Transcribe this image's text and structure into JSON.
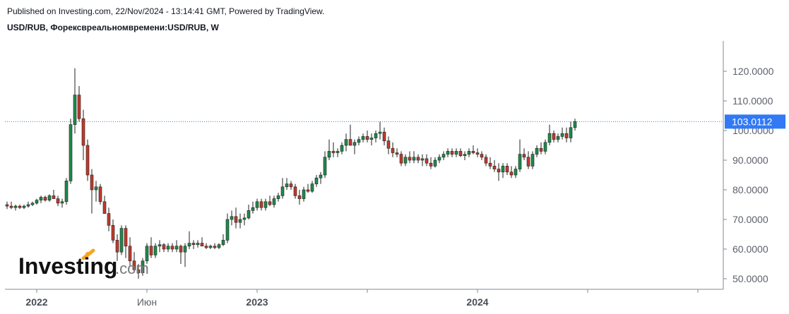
{
  "header": {
    "published": "Published on Investing.com, 22/Nov/2024 - 13:14:41 GMT, Powered by TradingView.",
    "symbol": "USD/RUB, Форексвреальномвремени:USD/RUB, W"
  },
  "logo": {
    "name": "Investing",
    "suffix": ".com"
  },
  "colors": {
    "up": "#1e8a4c",
    "down": "#c0392b",
    "price_tag": "#3179f5",
    "axis": "#868993"
  },
  "chart_data": {
    "type": "candlestick",
    "interval": "W",
    "ylim": [
      45,
      125
    ],
    "y_ticks": [
      {
        "value": 50,
        "label": "50.0000"
      },
      {
        "value": 60,
        "label": "60.0000"
      },
      {
        "value": 70,
        "label": "70.0000"
      },
      {
        "value": 80,
        "label": "80.0000"
      },
      {
        "value": 90,
        "label": "90.0000"
      },
      {
        "value": 100,
        "label": "100.0000"
      },
      {
        "value": 110,
        "label": "110.0000"
      },
      {
        "value": 120,
        "label": "120.0000"
      }
    ],
    "x_ticks": [
      {
        "index": 7,
        "label": "2022",
        "bold": true
      },
      {
        "index": 33,
        "label": "Июн",
        "bold": false
      },
      {
        "index": 59,
        "label": "2023",
        "bold": true
      },
      {
        "index": 85,
        "label": "",
        "bold": false
      },
      {
        "index": 111,
        "label": "2024",
        "bold": true
      },
      {
        "index": 137,
        "label": "",
        "bold": false
      },
      {
        "index": 163,
        "label": "",
        "bold": false
      }
    ],
    "last_price": 103.0112,
    "last_price_label": "103.0112",
    "ohlc": [
      [
        75,
        76,
        73.5,
        74.5
      ],
      [
        74.5,
        76,
        73.5,
        74
      ],
      [
        74,
        75,
        73,
        74.5
      ],
      [
        74.5,
        75,
        73.5,
        74
      ],
      [
        74,
        75,
        73.5,
        74.5
      ],
      [
        74.5,
        76,
        74,
        75
      ],
      [
        75,
        76,
        74.5,
        75.5
      ],
      [
        75.5,
        77,
        75,
        76.5
      ],
      [
        76.5,
        78,
        75.5,
        77.5
      ],
      [
        77.5,
        78,
        76,
        76.5
      ],
      [
        76.5,
        78.5,
        76,
        78
      ],
      [
        78,
        80,
        77.5,
        77
      ],
      [
        77,
        78,
        74.5,
        75.5
      ],
      [
        75.5,
        77,
        74,
        76
      ],
      [
        76,
        84,
        75,
        83
      ],
      [
        83,
        104,
        82,
        102
      ],
      [
        102,
        121,
        99,
        112
      ],
      [
        112,
        115,
        103,
        104
      ],
      [
        104,
        107,
        90,
        95
      ],
      [
        95,
        97,
        83,
        85
      ],
      [
        85,
        87,
        72,
        80
      ],
      [
        80,
        83,
        76,
        81
      ],
      [
        81,
        82,
        75,
        76
      ],
      [
        76,
        78,
        72,
        72
      ],
      [
        72,
        74,
        66,
        68
      ],
      [
        68,
        70,
        62,
        63
      ],
      [
        63,
        65,
        56,
        59
      ],
      [
        59,
        68,
        58,
        67
      ],
      [
        67,
        68,
        57,
        61
      ],
      [
        61,
        64,
        54,
        56
      ],
      [
        56,
        59,
        52,
        53
      ],
      [
        53,
        55,
        50,
        52
      ],
      [
        52,
        57,
        51,
        56
      ],
      [
        56,
        62,
        55,
        61
      ],
      [
        61,
        64,
        57,
        58
      ],
      [
        58,
        62,
        57,
        61
      ],
      [
        61,
        63,
        59,
        61.5
      ],
      [
        61.5,
        62,
        59,
        60
      ],
      [
        60,
        62,
        59,
        61
      ],
      [
        61,
        62,
        59,
        60
      ],
      [
        60,
        63,
        59,
        61
      ],
      [
        61,
        61.5,
        55,
        59
      ],
      [
        59,
        62,
        54,
        61
      ],
      [
        61,
        66,
        60,
        62
      ],
      [
        62,
        63,
        60,
        61.5
      ],
      [
        61.5,
        63,
        60.5,
        62
      ],
      [
        62,
        64,
        61,
        61
      ],
      [
        61,
        62,
        60,
        60.5
      ],
      [
        60.5,
        61.5,
        60,
        61
      ],
      [
        61,
        62,
        60,
        60.5
      ],
      [
        60.5,
        62,
        60,
        61.5
      ],
      [
        61.5,
        65,
        61,
        63
      ],
      [
        63,
        72,
        62,
        70
      ],
      [
        70,
        73,
        68,
        71
      ],
      [
        71,
        74,
        67,
        69
      ],
      [
        69,
        72,
        67,
        70
      ],
      [
        70,
        72,
        68,
        70.5
      ],
      [
        70.5,
        75,
        70,
        73
      ],
      [
        73,
        76,
        72,
        74
      ],
      [
        74,
        77,
        73,
        76
      ],
      [
        76,
        77,
        73,
        74
      ],
      [
        74,
        77,
        73,
        76
      ],
      [
        76,
        78,
        74.5,
        75
      ],
      [
        75,
        78,
        74,
        77
      ],
      [
        77,
        79,
        76,
        78
      ],
      [
        78,
        84,
        77,
        81
      ],
      [
        81,
        84,
        80,
        82
      ],
      [
        82,
        83,
        80,
        81
      ],
      [
        81,
        82,
        77,
        78
      ],
      [
        78,
        80,
        75,
        77
      ],
      [
        77,
        81,
        76,
        80
      ],
      [
        80,
        82,
        79,
        79.5
      ],
      [
        79.5,
        83,
        79,
        82
      ],
      [
        82,
        85,
        81,
        84
      ],
      [
        84,
        86,
        82,
        85
      ],
      [
        85,
        93,
        84,
        91
      ],
      [
        91,
        97,
        90,
        93
      ],
      [
        93,
        96,
        91,
        92.5
      ],
      [
        92.5,
        94,
        91,
        93
      ],
      [
        93,
        96,
        92,
        95
      ],
      [
        95,
        99,
        93,
        97
      ],
      [
        97,
        102,
        95,
        95
      ],
      [
        95,
        97,
        92,
        96
      ],
      [
        96,
        98,
        95,
        97
      ],
      [
        97,
        99,
        96,
        98
      ],
      [
        98,
        100,
        96,
        97
      ],
      [
        97,
        99,
        95,
        97.5
      ],
      [
        97.5,
        100,
        96,
        99
      ],
      [
        99,
        103,
        97,
        99.5
      ],
      [
        99.5,
        101,
        95,
        96.5
      ],
      [
        96.5,
        98,
        92,
        94
      ],
      [
        94,
        96,
        91,
        92.5
      ],
      [
        92.5,
        94,
        91,
        92
      ],
      [
        92,
        93,
        88,
        89
      ],
      [
        89,
        92,
        88,
        91
      ],
      [
        91,
        93,
        89,
        90
      ],
      [
        90,
        93,
        89,
        91
      ],
      [
        91,
        92,
        89,
        90
      ],
      [
        90,
        92,
        88,
        90.5
      ],
      [
        90.5,
        92,
        88,
        89
      ],
      [
        89,
        91,
        87,
        88
      ],
      [
        88,
        91,
        87.5,
        90
      ],
      [
        90,
        92,
        89,
        91
      ],
      [
        91,
        93,
        90,
        92
      ],
      [
        92,
        94,
        91,
        93
      ],
      [
        93,
        94,
        91,
        92
      ],
      [
        92,
        94,
        91,
        93
      ],
      [
        93,
        94,
        91,
        91.5
      ],
      [
        91.5,
        93,
        90,
        92
      ],
      [
        92,
        94,
        91,
        93
      ],
      [
        93,
        95,
        92,
        92.5
      ],
      [
        92.5,
        94,
        91,
        92
      ],
      [
        92,
        93,
        90,
        91
      ],
      [
        91,
        92,
        88,
        89
      ],
      [
        89,
        91,
        87,
        88
      ],
      [
        88,
        90,
        86,
        87
      ],
      [
        87,
        89,
        83,
        86
      ],
      [
        86,
        89,
        84,
        88
      ],
      [
        88,
        89,
        85,
        86
      ],
      [
        86,
        88,
        84,
        85
      ],
      [
        85,
        88,
        84,
        87
      ],
      [
        87,
        97,
        86,
        92
      ],
      [
        92,
        94,
        90,
        91
      ],
      [
        91,
        93,
        87,
        88
      ],
      [
        88,
        93,
        87,
        92
      ],
      [
        92,
        95,
        91,
        94
      ],
      [
        94,
        96,
        92,
        93
      ],
      [
        93,
        97,
        92,
        96
      ],
      [
        96,
        102,
        95,
        99
      ],
      [
        99,
        100,
        96,
        97
      ],
      [
        97,
        99,
        96,
        98
      ],
      [
        98,
        101,
        97,
        99
      ],
      [
        99,
        101,
        96,
        97.5
      ],
      [
        97.5,
        103,
        96,
        101
      ],
      [
        101,
        104,
        100,
        103.0112
      ]
    ]
  }
}
